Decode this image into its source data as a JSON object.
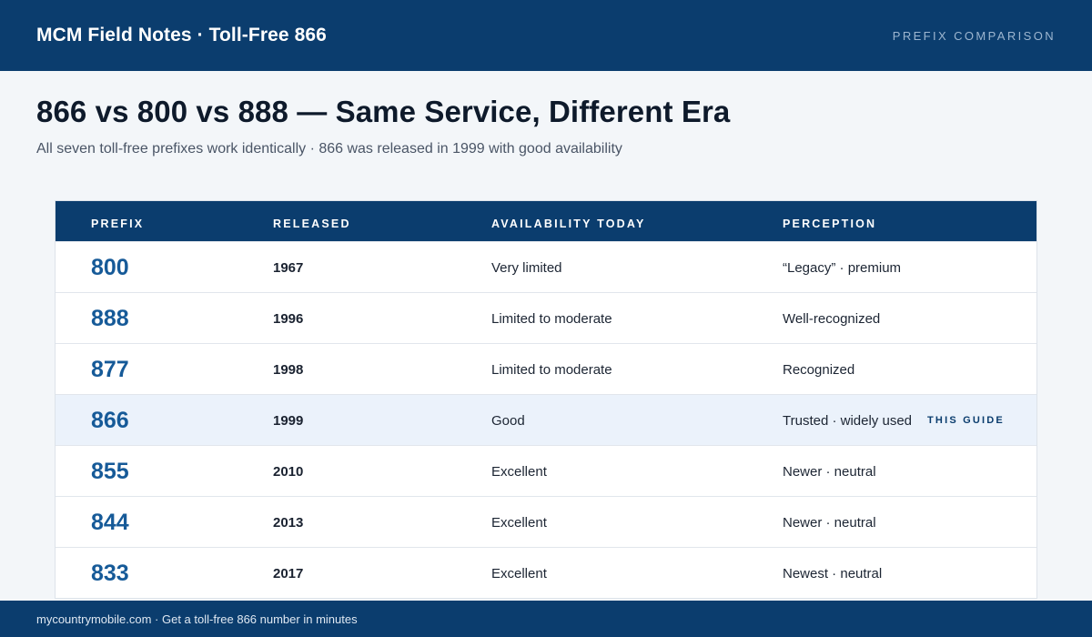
{
  "header": {
    "brand": "MCM Field Notes · Toll-Free 866",
    "section_tag": "PREFIX COMPARISON"
  },
  "headline": "866 vs 800 vs 888 — Same Service, Different Era",
  "subhead": "All seven toll-free prefixes work identically · 866 was released in 1999 with good availability",
  "table": {
    "columns": [
      "PREFIX",
      "RELEASED",
      "AVAILABILITY TODAY",
      "PERCEPTION"
    ],
    "rows": [
      {
        "prefix": "800",
        "released": "1967",
        "availability": "Very limited",
        "perception": "“Legacy” · premium"
      },
      {
        "prefix": "888",
        "released": "1996",
        "availability": "Limited to moderate",
        "perception": "Well-recognized"
      },
      {
        "prefix": "877",
        "released": "1998",
        "availability": "Limited to moderate",
        "perception": "Recognized"
      },
      {
        "prefix": "866",
        "released": "1999",
        "availability": "Good",
        "perception": "Trusted · widely used",
        "badge": "THIS GUIDE"
      },
      {
        "prefix": "855",
        "released": "2010",
        "availability": "Excellent",
        "perception": "Newer · neutral"
      },
      {
        "prefix": "844",
        "released": "2013",
        "availability": "Excellent",
        "perception": "Newer · neutral"
      },
      {
        "prefix": "833",
        "released": "2017",
        "availability": "Excellent",
        "perception": "Newest · neutral"
      }
    ]
  },
  "footer": {
    "text": "mycountrymobile.com · Get a toll-free 866 number in minutes"
  },
  "colors": {
    "navy": "#0b3d6e",
    "prefix_blue": "#165a98",
    "highlight_row": "#ebf2fb",
    "page_bg": "#f3f6f9"
  }
}
